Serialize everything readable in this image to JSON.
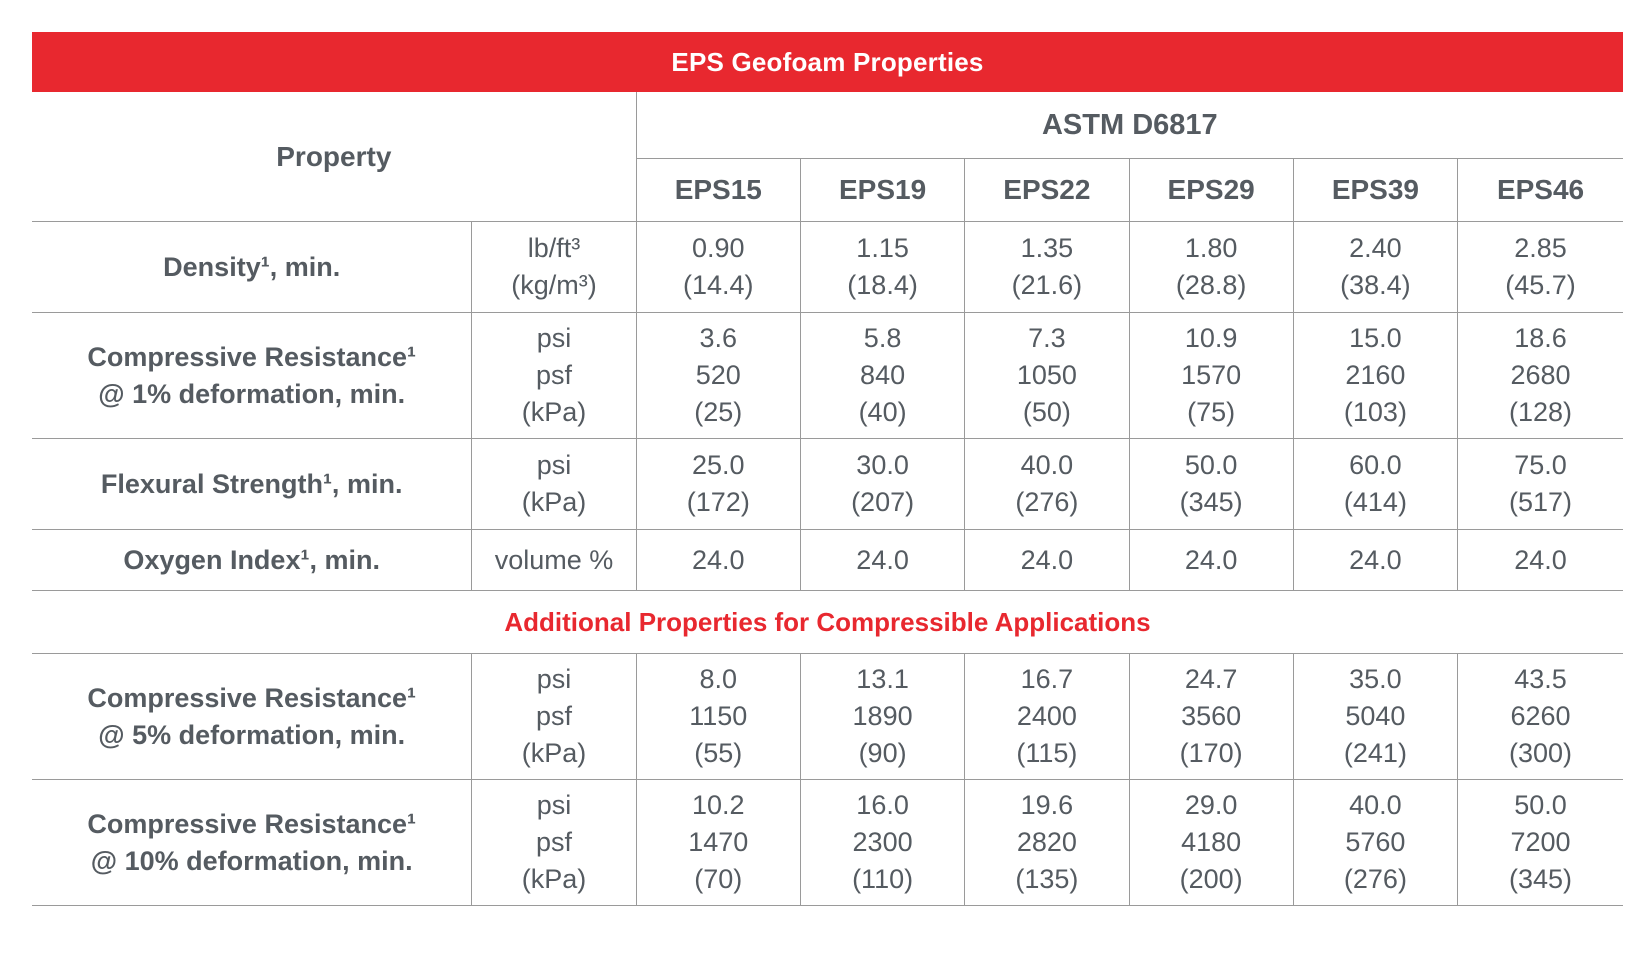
{
  "title": "EPS Geofoam Properties",
  "header": {
    "property_label": "Property",
    "standard_label": "ASTM D6817",
    "grades": [
      "EPS15",
      "EPS19",
      "EPS22",
      "EPS29",
      "EPS39",
      "EPS46"
    ]
  },
  "rows": [
    {
      "name_lines": [
        "Density¹, min."
      ],
      "unit_lines": [
        "lb/ft³",
        "(kg/m³)"
      ],
      "values": [
        [
          "0.90",
          "(14.4)"
        ],
        [
          "1.15",
          "(18.4)"
        ],
        [
          "1.35",
          "(21.6)"
        ],
        [
          "1.80",
          "(28.8)"
        ],
        [
          "2.40",
          "(38.4)"
        ],
        [
          "2.85",
          "(45.7)"
        ]
      ]
    },
    {
      "name_lines": [
        "Compressive Resistance¹",
        "@ 1% deformation, min."
      ],
      "unit_lines": [
        "psi",
        "psf",
        "(kPa)"
      ],
      "values": [
        [
          "3.6",
          "520",
          "(25)"
        ],
        [
          "5.8",
          "840",
          "(40)"
        ],
        [
          "7.3",
          "1050",
          "(50)"
        ],
        [
          "10.9",
          "1570",
          "(75)"
        ],
        [
          "15.0",
          "2160",
          "(103)"
        ],
        [
          "18.6",
          "2680",
          "(128)"
        ]
      ]
    },
    {
      "name_lines": [
        "Flexural Strength¹, min."
      ],
      "unit_lines": [
        "psi",
        "(kPa)"
      ],
      "values": [
        [
          "25.0",
          "(172)"
        ],
        [
          "30.0",
          "(207)"
        ],
        [
          "40.0",
          "(276)"
        ],
        [
          "50.0",
          "(345)"
        ],
        [
          "60.0",
          "(414)"
        ],
        [
          "75.0",
          "(517)"
        ]
      ]
    },
    {
      "name_lines": [
        "Oxygen Index¹, min."
      ],
      "unit_lines": [
        "volume %"
      ],
      "values": [
        [
          "24.0"
        ],
        [
          "24.0"
        ],
        [
          "24.0"
        ],
        [
          "24.0"
        ],
        [
          "24.0"
        ],
        [
          "24.0"
        ]
      ]
    }
  ],
  "section_label": "Additional Properties for Compressible Applications",
  "rows2": [
    {
      "name_lines": [
        "Compressive Resistance¹",
        "@ 5% deformation, min."
      ],
      "unit_lines": [
        "psi",
        "psf",
        "(kPa)"
      ],
      "values": [
        [
          "8.0",
          "1150",
          "(55)"
        ],
        [
          "13.1",
          "1890",
          "(90)"
        ],
        [
          "16.7",
          "2400",
          "(115)"
        ],
        [
          "24.7",
          "3560",
          "(170)"
        ],
        [
          "35.0",
          "5040",
          "(241)"
        ],
        [
          "43.5",
          "6260",
          "(300)"
        ]
      ]
    },
    {
      "name_lines": [
        "Compressive Resistance¹",
        "@ 10% deformation, min."
      ],
      "unit_lines": [
        "psi",
        "psf",
        "(kPa)"
      ],
      "values": [
        [
          "10.2",
          "1470",
          "(70)"
        ],
        [
          "16.0",
          "2300",
          "(110)"
        ],
        [
          "19.6",
          "2820",
          "(135)"
        ],
        [
          "29.0",
          "4180",
          "(200)"
        ],
        [
          "40.0",
          "5760",
          "(276)"
        ],
        [
          "50.0",
          "7200",
          "(345)"
        ]
      ]
    }
  ]
}
